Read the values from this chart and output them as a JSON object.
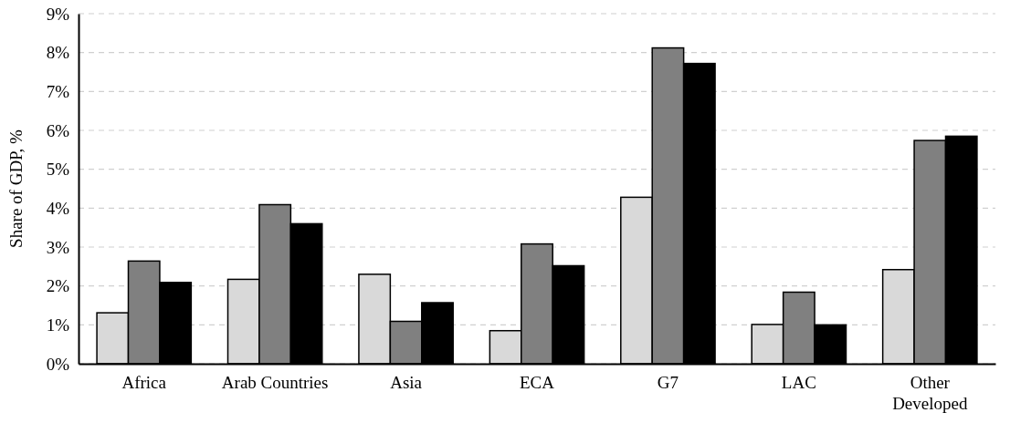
{
  "chart_data": {
    "type": "bar",
    "ylabel": "Share of GDP, %",
    "categories": [
      "Africa",
      "Arab Countries",
      "Asia",
      "ECA",
      "G7",
      "LAC",
      "Other Developed"
    ],
    "series": [
      {
        "color": "#d9d9d9",
        "values": [
          1.31,
          2.17,
          2.3,
          0.85,
          4.28,
          1.01,
          2.42
        ]
      },
      {
        "color": "#808080",
        "values": [
          2.64,
          4.09,
          1.09,
          3.08,
          8.12,
          1.84,
          5.74
        ]
      },
      {
        "color": "#000000",
        "values": [
          2.09,
          3.6,
          1.57,
          2.52,
          7.72,
          1.0,
          5.85
        ]
      }
    ],
    "ylim": [
      0,
      9
    ],
    "yticks": [
      {
        "value": 0,
        "label": "0%"
      },
      {
        "value": 1,
        "label": "1%"
      },
      {
        "value": 2,
        "label": "2%"
      },
      {
        "value": 3,
        "label": "3%"
      },
      {
        "value": 4,
        "label": "4%"
      },
      {
        "value": 5,
        "label": "5%"
      },
      {
        "value": 6,
        "label": "6%"
      },
      {
        "value": 7,
        "label": "7%"
      },
      {
        "value": 8,
        "label": "8%"
      },
      {
        "value": 9,
        "label": "9%"
      }
    ],
    "grid": "y"
  }
}
